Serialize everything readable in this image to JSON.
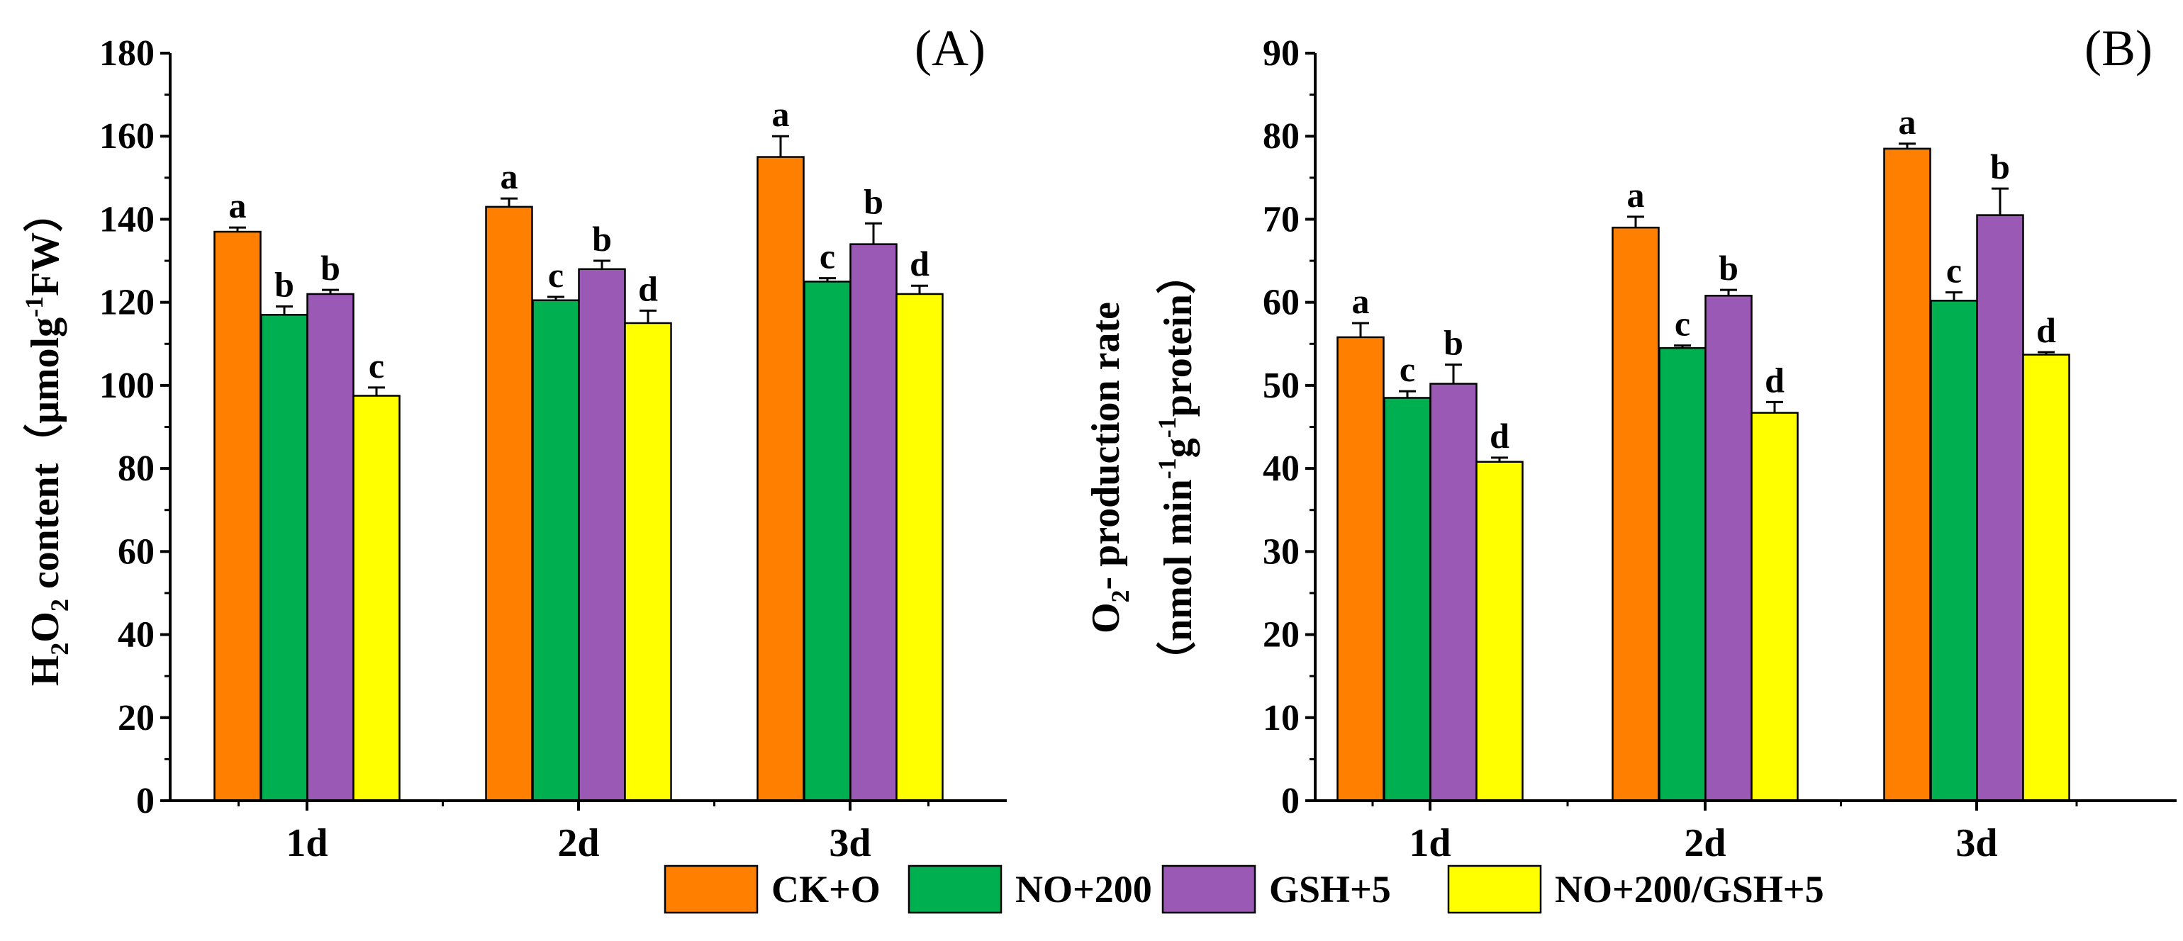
{
  "colors": {
    "CK+O": "#ff8000",
    "NO+200": "#00b050",
    "GSH+5": "#9b59b6",
    "NO+200/GSH+5": "#ffff00"
  },
  "legend": [
    "CK+O",
    "NO+200",
    "GSH+5",
    "NO+200/GSH+5"
  ],
  "chart_data": [
    {
      "type": "bar",
      "panel_label": "(A)",
      "ylabel": {
        "prefix": "H",
        "s1": "2",
        "mid": "O",
        "s2": "2",
        "rest": " content（μmolg",
        "sup": "-1",
        "end": "FW）"
      },
      "categories": [
        "1d",
        "2d",
        "3d"
      ],
      "ylim": [
        0,
        180
      ],
      "yticks": [
        0,
        20,
        40,
        60,
        80,
        100,
        120,
        140,
        160,
        180
      ],
      "series": [
        {
          "name": "CK+O",
          "values": [
            137,
            143,
            155
          ],
          "errors": [
            1,
            2,
            5
          ],
          "letters": [
            "a",
            "a",
            "a"
          ]
        },
        {
          "name": "NO+200",
          "values": [
            117,
            120.5,
            125
          ],
          "errors": [
            2,
            0.8,
            0.8
          ],
          "letters": [
            "b",
            "c",
            "c"
          ]
        },
        {
          "name": "GSH+5",
          "values": [
            122,
            128,
            134
          ],
          "errors": [
            1,
            2,
            5
          ],
          "letters": [
            "b",
            "b",
            "b"
          ]
        },
        {
          "name": "NO+200/GSH+5",
          "values": [
            97.5,
            115,
            122
          ],
          "errors": [
            2,
            3,
            2
          ],
          "letters": [
            "c",
            "d",
            "d"
          ]
        }
      ]
    },
    {
      "type": "bar",
      "panel_label": "(B)",
      "ylabel": {
        "line1_prefix": "O",
        "line1_sub": "2",
        "line1_rest": "- production rate",
        "line2_a": "（nmol min",
        "line2_sup1": "-1",
        "line2_b": "g",
        "line2_sup2": "-1",
        "line2_c": "protein）"
      },
      "categories": [
        "1d",
        "2d",
        "3d"
      ],
      "ylim": [
        0,
        90
      ],
      "yticks": [
        0,
        10,
        20,
        30,
        40,
        50,
        60,
        70,
        80,
        90
      ],
      "series": [
        {
          "name": "CK+O",
          "values": [
            55.8,
            69,
            78.5
          ],
          "errors": [
            1.7,
            1.3,
            0.6
          ],
          "letters": [
            "a",
            "a",
            "a"
          ]
        },
        {
          "name": "NO+200",
          "values": [
            48.5,
            54.5,
            60.2
          ],
          "errors": [
            0.8,
            0.3,
            1.0
          ],
          "letters": [
            "c",
            "c",
            "c"
          ]
        },
        {
          "name": "GSH+5",
          "values": [
            50.2,
            60.8,
            70.5
          ],
          "errors": [
            2.3,
            0.7,
            3.2
          ],
          "letters": [
            "b",
            "b",
            "b"
          ]
        },
        {
          "name": "NO+200/GSH+5",
          "values": [
            40.8,
            46.7,
            53.7
          ],
          "errors": [
            0.5,
            1.3,
            0.3
          ],
          "letters": [
            "d",
            "d",
            "d"
          ]
        }
      ]
    }
  ]
}
